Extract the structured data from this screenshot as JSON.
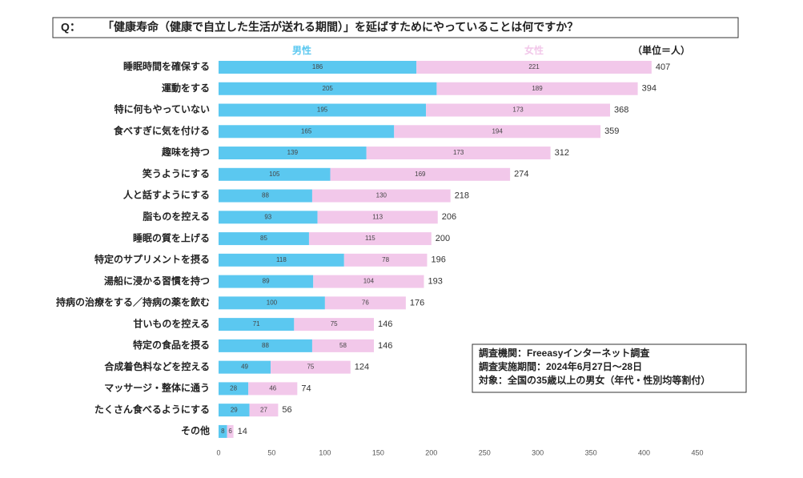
{
  "chart_data": {
    "type": "stacked-barh",
    "question_label": "Q：",
    "title": "「健康寿命（健康で自立した生活が送れる期間）」を延ばすためにやっていることは何ですか？",
    "unit": "（単位＝人）",
    "categories": [
      "睡眠時間を確保する",
      "運動をする",
      "特に何もやっていない",
      "食べすぎに気を付ける",
      "趣味を持つ",
      "笑うようにする",
      "人と話すようにする",
      "脂ものを控える",
      "睡眠の質を上げる",
      "特定のサプリメントを摂る",
      "湯船に浸かる習慣を持つ",
      "持病の治療をする／持病の薬を飲む",
      "甘いものを控える",
      "特定の食品を摂る",
      "合成着色料などを控える",
      "マッサージ・整体に通う",
      "たくさん食べるようにする",
      "その他"
    ],
    "series": [
      {
        "name": "男性",
        "color": "#5bc8f0",
        "values": [
          186,
          205,
          195,
          165,
          139,
          105,
          88,
          93,
          85,
          118,
          89,
          100,
          71,
          88,
          49,
          28,
          29,
          8
        ]
      },
      {
        "name": "女性",
        "color": "#f2c8ea",
        "values": [
          221,
          189,
          173,
          194,
          173,
          169,
          130,
          113,
          115,
          78,
          104,
          76,
          75,
          58,
          75,
          46,
          27,
          6
        ]
      }
    ],
    "totals": [
      407,
      394,
      368,
      359,
      312,
      274,
      218,
      206,
      200,
      196,
      193,
      176,
      146,
      146,
      124,
      74,
      56,
      14
    ],
    "xlim": [
      0,
      450
    ],
    "xticks": [
      0,
      50,
      100,
      150,
      200,
      250,
      300,
      350,
      400,
      450
    ],
    "note": [
      "調査機関：Freeasyインターネット調査",
      "調査実施期間：2024年6月27日～28日",
      "対象：全国の35歳以上の男女（年代・性別均等割付）"
    ]
  }
}
